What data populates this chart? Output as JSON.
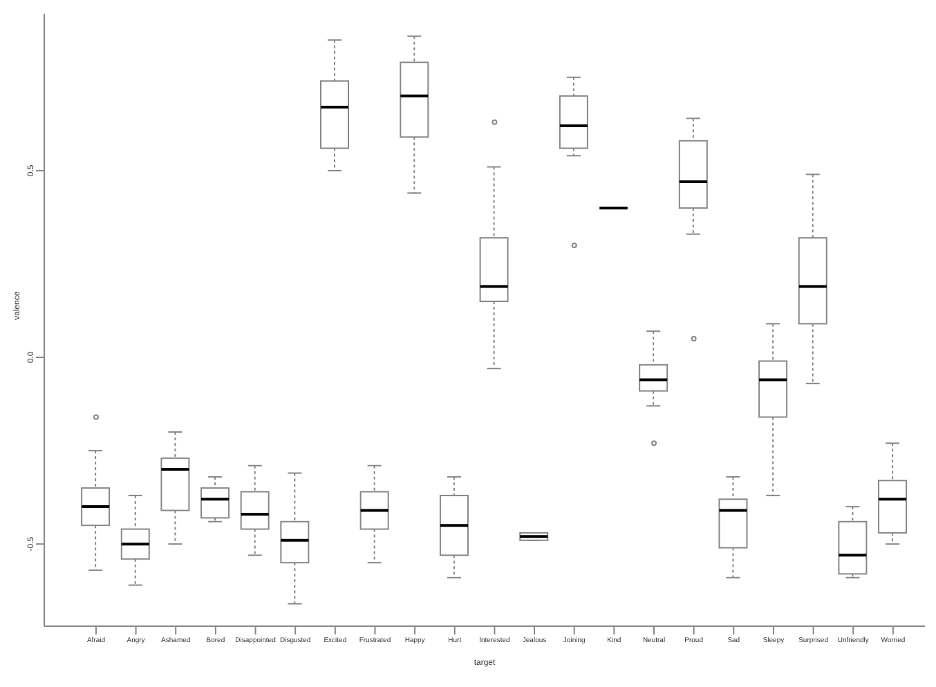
{
  "chart_data": {
    "type": "box",
    "xlabel": "target",
    "ylabel": "valence",
    "categories": [
      "Afraid",
      "Angry",
      "Ashamed",
      "Bored",
      "Disappointed",
      "Disgusted",
      "Excited",
      "Frustrated",
      "Happy",
      "Hurt",
      "Interested",
      "Jealous",
      "Joining",
      "Kind",
      "Neutral",
      "Proud",
      "Sad",
      "Sleepy",
      "Surprised",
      "Unfriendly",
      "Worried"
    ],
    "ylim": [
      -0.72,
      0.92
    ],
    "yticks": [
      -0.5,
      {
        "value": 0,
        "label": "0.0"
      },
      0.5
    ],
    "color": "#888888",
    "boxes": [
      {
        "low": -0.57,
        "q1": -0.45,
        "median": -0.4,
        "q3": -0.35,
        "high": -0.25,
        "outliers": [
          -0.16
        ]
      },
      {
        "low": -0.61,
        "q1": -0.54,
        "median": -0.5,
        "q3": -0.46,
        "high": -0.37
      },
      {
        "low": -0.5,
        "q1": -0.41,
        "median": -0.3,
        "q3": -0.27,
        "high": -0.2
      },
      {
        "low": -0.44,
        "q1": -0.43,
        "median": -0.38,
        "q3": -0.35,
        "high": -0.32
      },
      {
        "low": -0.53,
        "q1": -0.46,
        "median": -0.42,
        "q3": -0.36,
        "high": -0.29
      },
      {
        "low": -0.66,
        "q1": -0.55,
        "median": -0.49,
        "q3": -0.44,
        "high": -0.31
      },
      {
        "low": 0.5,
        "q1": 0.56,
        "median": 0.67,
        "q3": 0.74,
        "high": 0.85
      },
      {
        "low": -0.55,
        "q1": -0.46,
        "median": -0.41,
        "q3": -0.36,
        "high": -0.29
      },
      {
        "low": 0.44,
        "q1": 0.59,
        "median": 0.7,
        "q3": 0.79,
        "high": 0.86
      },
      {
        "low": -0.59,
        "q1": -0.53,
        "median": -0.45,
        "q3": -0.37,
        "high": -0.32
      },
      {
        "low": -0.03,
        "q1": 0.15,
        "median": 0.19,
        "q3": 0.32,
        "high": 0.51,
        "outliers": [
          0.63
        ]
      },
      {
        "low": -0.49,
        "q1": -0.49,
        "median": -0.48,
        "q3": -0.47,
        "high": -0.47
      },
      {
        "low": 0.54,
        "q1": 0.56,
        "median": 0.62,
        "q3": 0.7,
        "high": 0.75,
        "outliers": [
          0.3
        ]
      },
      {
        "low": 0.4,
        "q1": 0.4,
        "median": 0.4,
        "q3": 0.4,
        "high": 0.4
      },
      {
        "low": -0.13,
        "q1": -0.09,
        "median": -0.06,
        "q3": -0.02,
        "high": 0.07,
        "outliers": [
          -0.23
        ]
      },
      {
        "low": 0.33,
        "q1": 0.4,
        "median": 0.47,
        "q3": 0.58,
        "high": 0.64,
        "outliers": [
          0.05
        ]
      },
      {
        "low": -0.59,
        "q1": -0.51,
        "median": -0.41,
        "q3": -0.38,
        "high": -0.32
      },
      {
        "low": -0.37,
        "q1": -0.16,
        "median": -0.06,
        "q3": -0.01,
        "high": 0.09
      },
      {
        "low": -0.07,
        "q1": 0.09,
        "median": 0.19,
        "q3": 0.32,
        "high": 0.49
      },
      {
        "low": -0.59,
        "q1": -0.58,
        "median": -0.53,
        "q3": -0.44,
        "high": -0.4
      },
      {
        "low": -0.5,
        "q1": -0.47,
        "median": -0.38,
        "q3": -0.33,
        "high": -0.23
      }
    ]
  }
}
